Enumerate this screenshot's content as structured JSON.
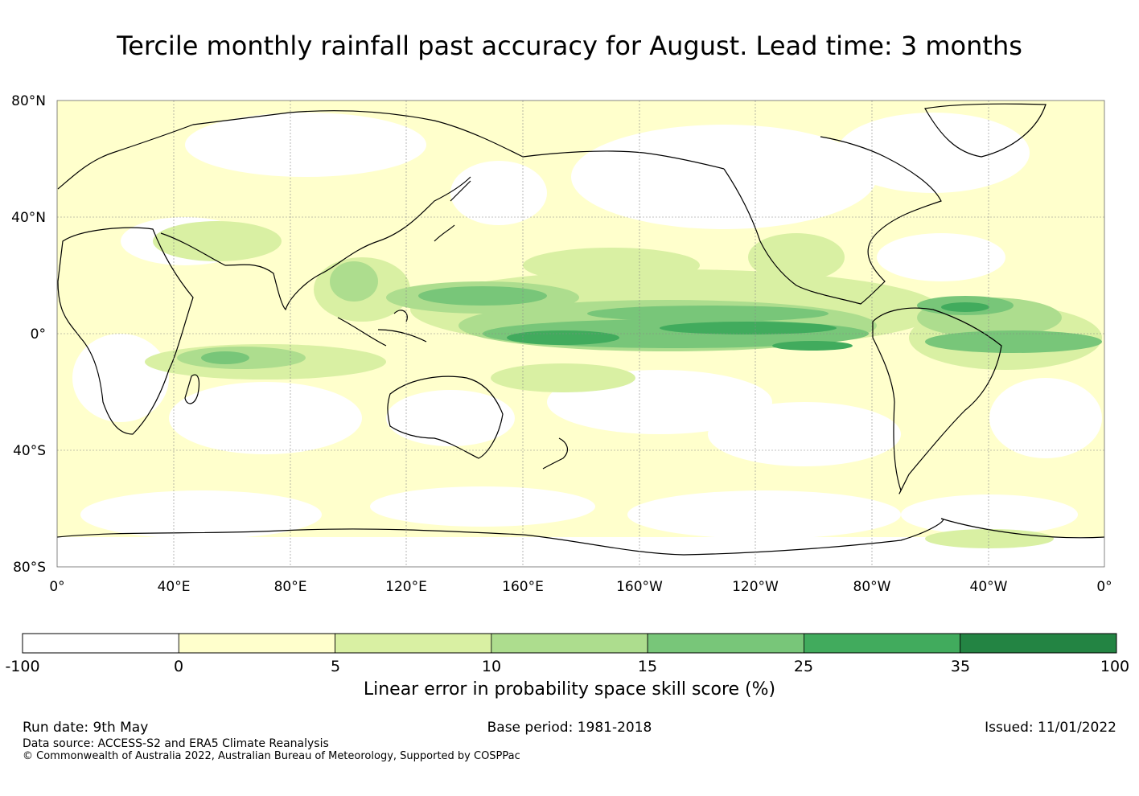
{
  "title": "Tercile monthly rainfall past accuracy for August. Lead time: 3 months",
  "map": {
    "lat_labels": [
      "80°N",
      "40°N",
      "0°",
      "40°S",
      "80°S"
    ],
    "lon_labels": [
      "0°",
      "40°E",
      "80°E",
      "120°E",
      "160°E",
      "160°W",
      "120°W",
      "80°W",
      "40°W",
      "0°"
    ],
    "lat_range": [
      -80,
      80
    ],
    "lon_range": [
      0,
      360
    ],
    "grid": true
  },
  "colorbar": {
    "ticks": [
      "-100",
      "0",
      "5",
      "10",
      "15",
      "25",
      "35",
      "100"
    ],
    "colors": [
      "#ffffff",
      "#ffffcc",
      "#d9f0a3",
      "#addd8e",
      "#78c679",
      "#41ab5d",
      "#238443"
    ],
    "label": "Linear error in probability space skill score (%)"
  },
  "footer": {
    "run_date": "Run date: 9th May",
    "base_period": "Base period: 1981-2018",
    "issued": "Issued: 11/01/2022",
    "data_source": "Data source: ACCESS-S2 and ERA5 Climate Reanalysis",
    "copyright": "© Commonwealth of Australia 2022, Australian Bureau of Meteorology, Supported by COSPPac"
  }
}
